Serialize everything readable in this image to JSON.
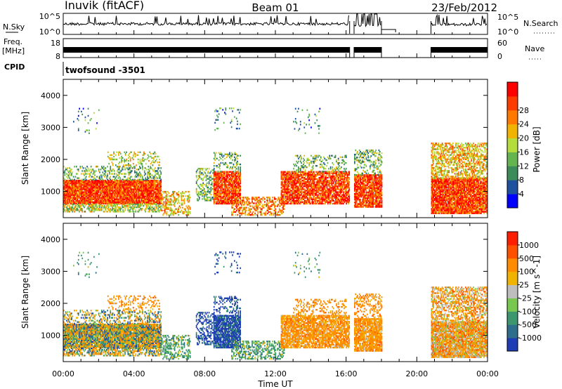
{
  "header": {
    "station": "Inuvik (fitACF)",
    "beam": "Beam 01",
    "date": "23/Feb/2012"
  },
  "top_strip": {
    "left_label": "N.Sky",
    "left_ticks": [
      "10^5",
      "10^0"
    ],
    "right_ticks": [
      "10^5",
      "10^0"
    ],
    "right_label": "N.Search"
  },
  "freq_strip": {
    "left_label_line1": "Freq.",
    "left_label_line2": "[MHz]",
    "left_ticks": [
      "18",
      "8"
    ],
    "right_ticks": [
      "60",
      "0"
    ],
    "right_label": "Nave"
  },
  "cpid": {
    "label": "CPID",
    "value": "twofsound -3501"
  },
  "axes": {
    "ylabel": "Slant Range [km]",
    "xlabel": "Time UT",
    "y_ticks": [
      "1000",
      "2000",
      "3000",
      "4000"
    ],
    "x_ticks": [
      "00:00",
      "04:00",
      "08:00",
      "12:00",
      "16:00",
      "20:00",
      "00:00"
    ]
  },
  "colors": {
    "power_scale": [
      "#0000ff",
      "#1e50a0",
      "#3c8c5a",
      "#64b450",
      "#b4dc3c",
      "#f0b400",
      "#ff7800",
      "#ff3c00",
      "#ff0000"
    ],
    "velocity_scale": [
      "#1e3cb4",
      "#2d6e8c",
      "#3c966e",
      "#78c850",
      "#bebebe",
      "#f0b400",
      "#ff8c00",
      "#ff5000",
      "#ff1e00"
    ]
  },
  "chart_data": [
    {
      "type": "heatmap",
      "title": "",
      "xlabel": "",
      "ylabel": "Slant Range [km]",
      "colorbar_label": "Power [dB]",
      "colorbar_ticks": [
        "4",
        "8",
        "12",
        "16",
        "20",
        "24",
        "28"
      ],
      "xlim": [
        0,
        24
      ],
      "ylim": [
        180,
        4500
      ],
      "x_ticks": [
        "00:00",
        "04:00",
        "08:00",
        "12:00",
        "16:00",
        "20:00",
        "00:00"
      ],
      "y_ticks": [
        1000,
        2000,
        3000,
        4000
      ]
    },
    {
      "type": "heatmap",
      "title": "",
      "xlabel": "Time UT",
      "ylabel": "Slant Range [km]",
      "colorbar_label": "Velocity [m s^-1]",
      "colorbar_ticks": [
        "1000",
        "500",
        "100",
        "25",
        "-25",
        "-100",
        "-500",
        "-1000"
      ],
      "xlim": [
        0,
        24
      ],
      "ylim": [
        180,
        4500
      ],
      "x_ticks": [
        "00:00",
        "04:00",
        "08:00",
        "12:00",
        "16:00",
        "20:00",
        "00:00"
      ],
      "y_ticks": [
        1000,
        2000,
        3000,
        4000
      ]
    }
  ]
}
